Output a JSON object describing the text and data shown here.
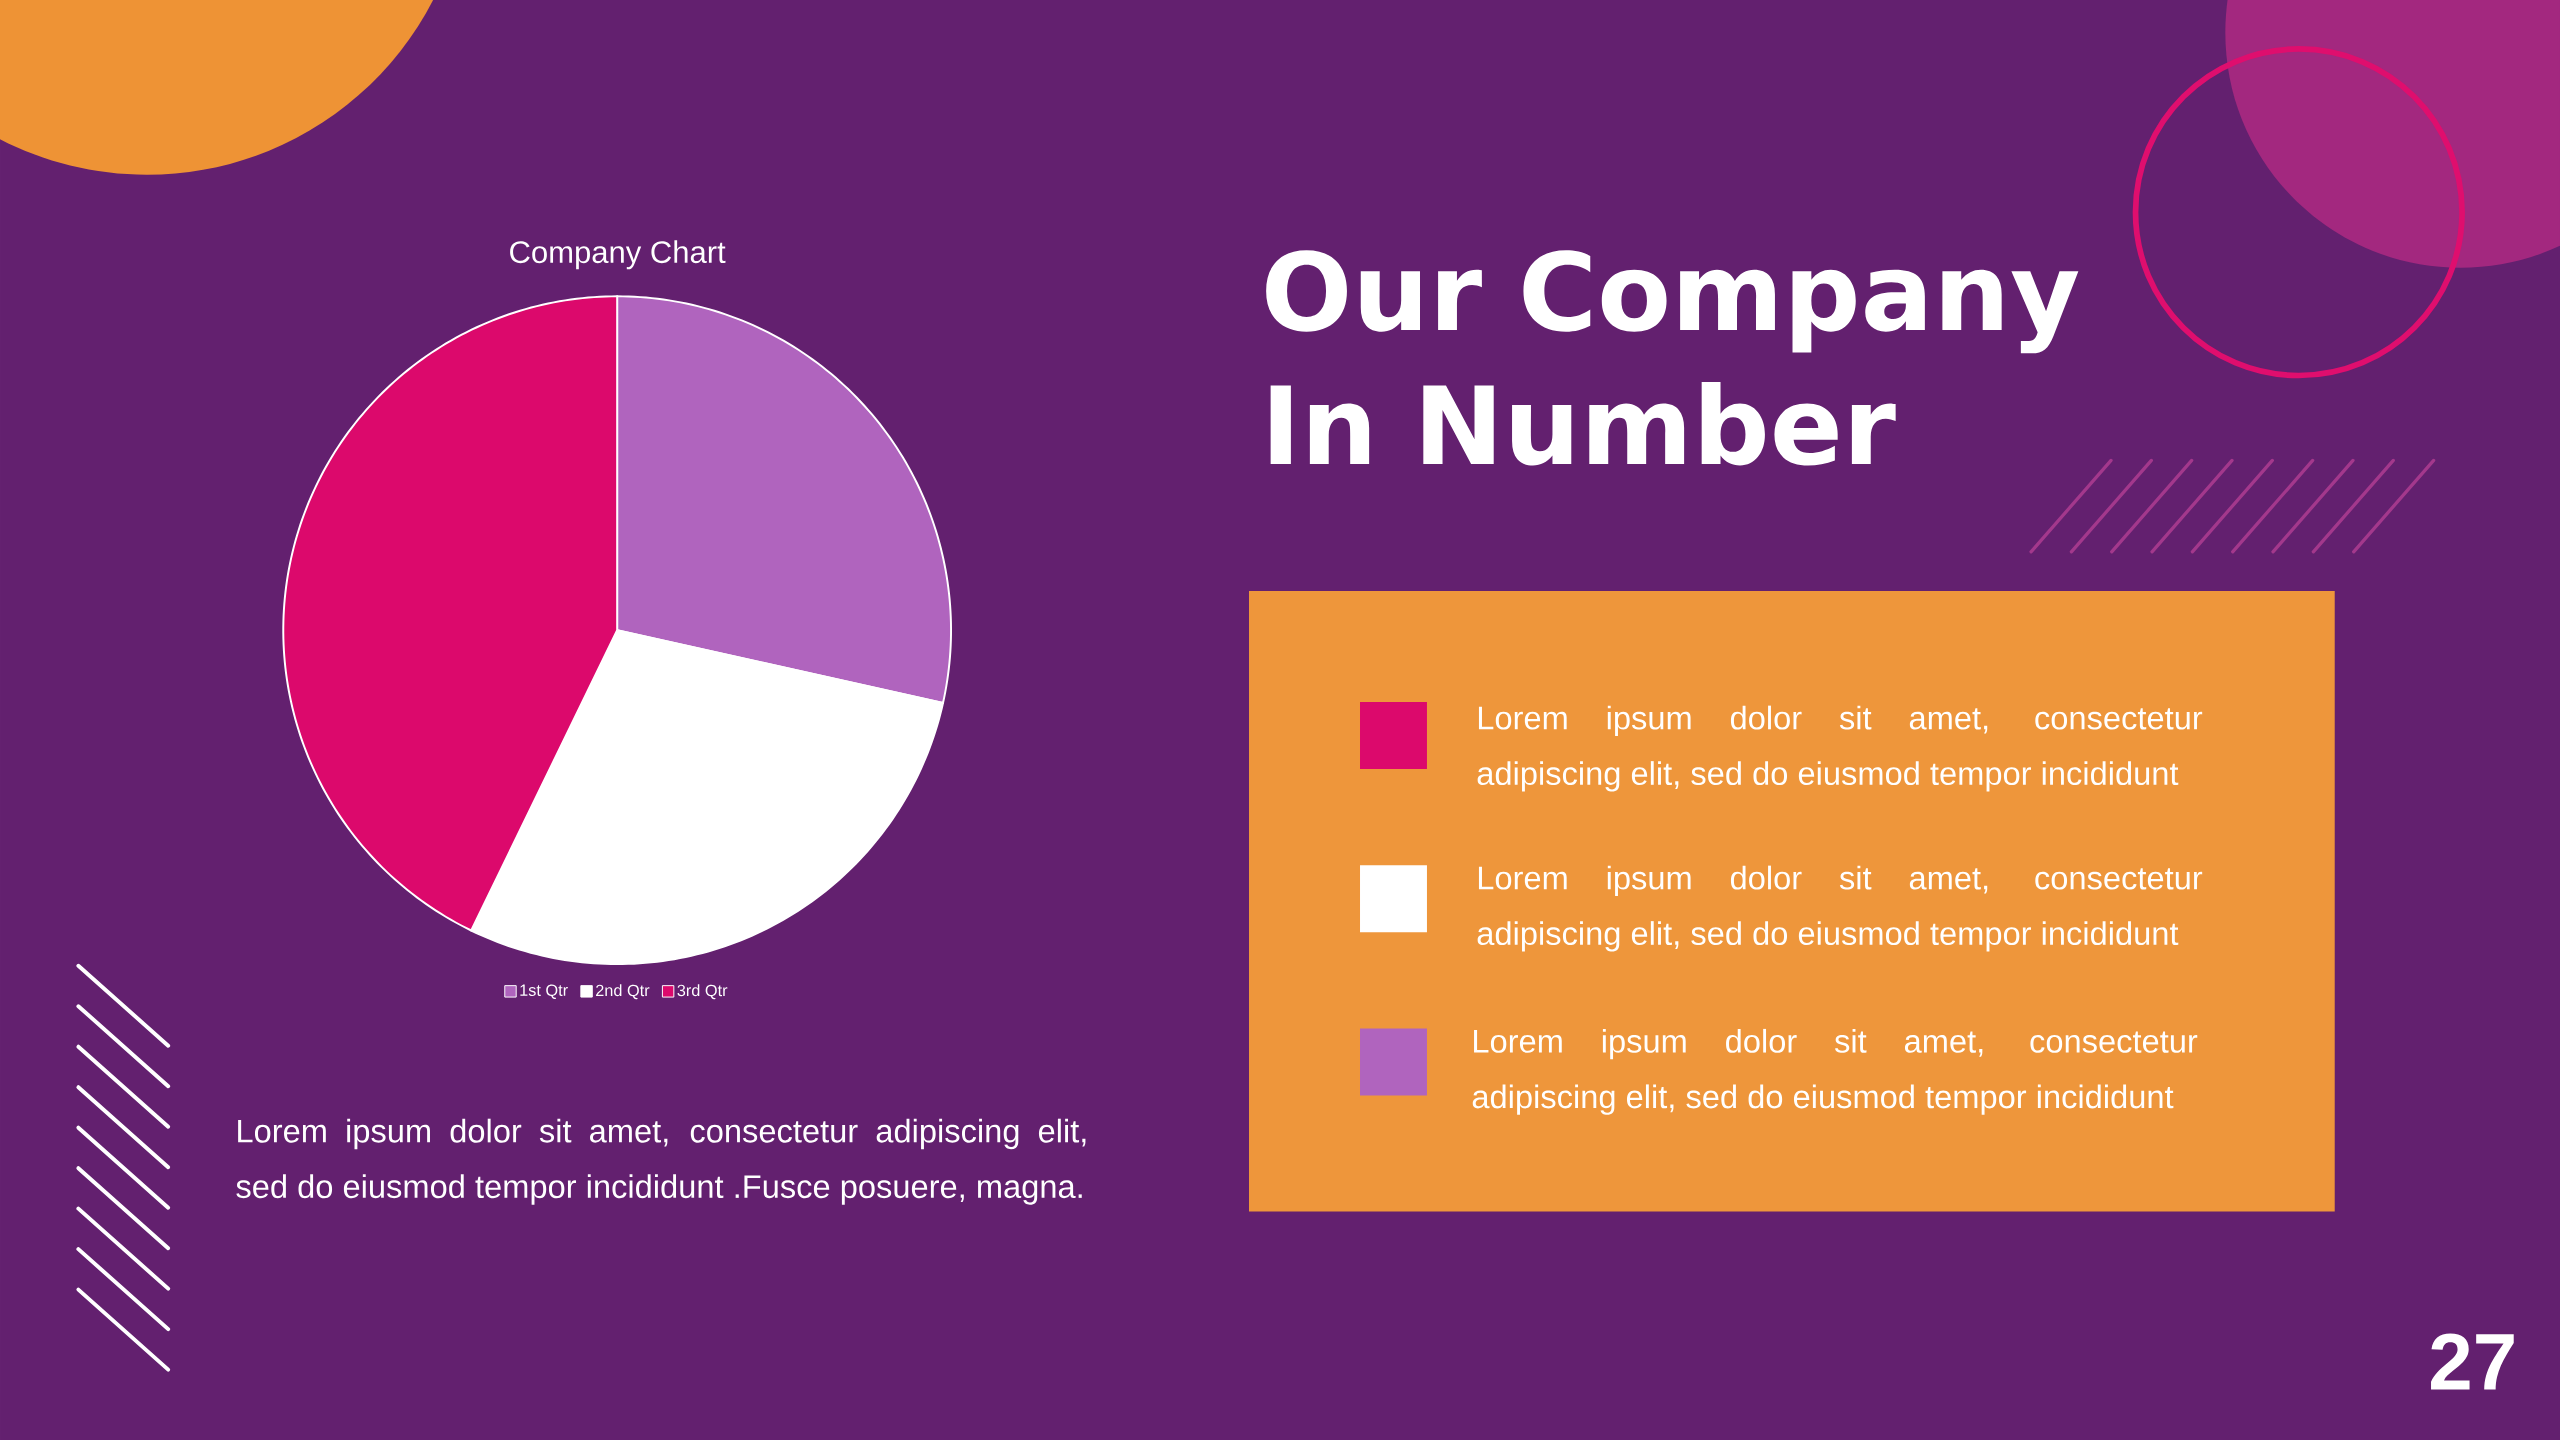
{
  "chart_data": {
    "type": "pie",
    "title": "Company Chart",
    "categories": [
      "1st Qtr",
      "2nd Qtr",
      "3rd Qtr"
    ],
    "values": [
      28.5,
      28.7,
      42.8
    ],
    "colors": [
      "#b064be",
      "#ffffff",
      "#dc096c"
    ],
    "legend": "bottom",
    "annotations": [
      "Our Company In Number",
      "Lorem ipsum dolor sit amet, consectetur adipiscing elit, sed do eiusmod tempor incididunt",
      "Lorem ipsum dolor sit amet, consectetur adipiscing elit, sed do eiusmod tempor incididunt",
      "Lorem ipsum dolor sit amet, consectetur adipiscing elit, sed do eiusmod tempor incididunt",
      "Lorem ipsum dolor sit amet, consectetur adipiscing elit, sed do eiusmod tempor incididunt .Fusce posuere, magna.",
      "27"
    ]
  }
}
